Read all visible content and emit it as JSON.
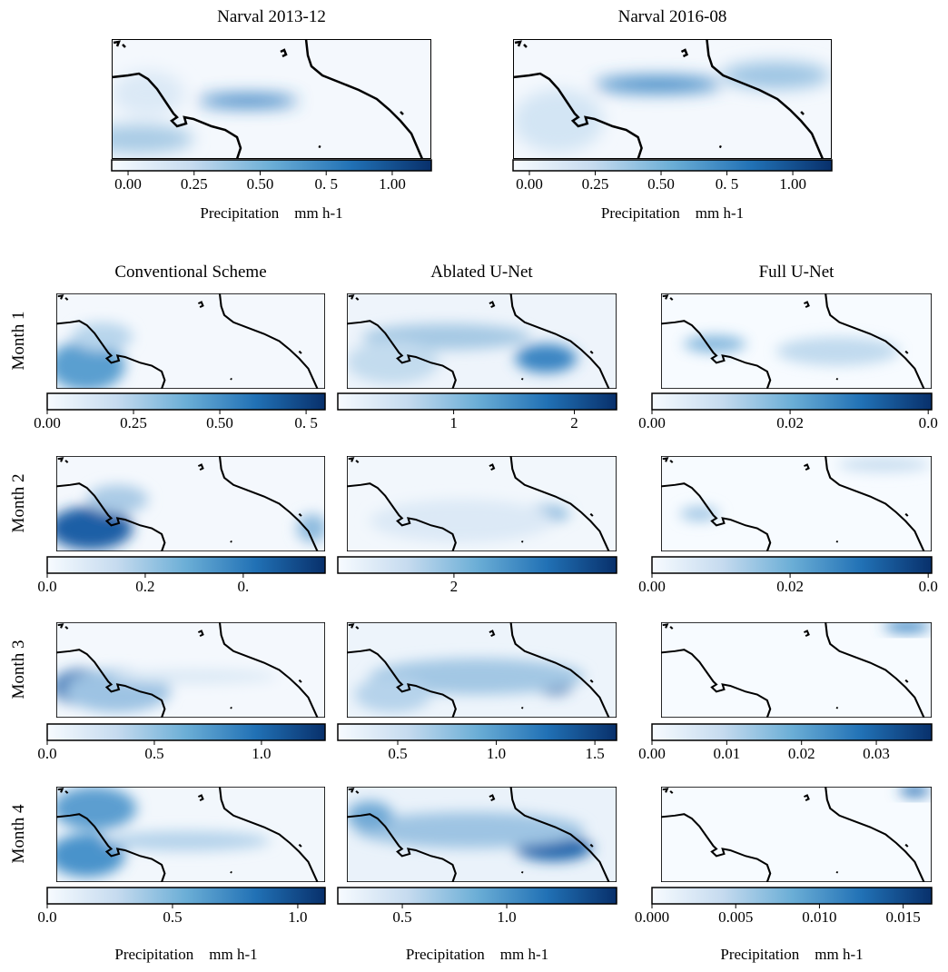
{
  "top_panels": [
    {
      "title": "Narval 2013-12",
      "colorbar": {
        "lim": [
          -0.062,
          1.148
        ],
        "ticks": [
          {
            "value": 0,
            "label": "0.00"
          },
          0.25,
          {
            "value": 0.5,
            "label": "0.50"
          },
          {
            "value": 0.75,
            "label": "0. 5"
          },
          {
            "value": 1,
            "label": "1.00"
          }
        ],
        "label": "Precipitation    mm h-1"
      }
    },
    {
      "title": "Narval 2016-08",
      "colorbar": {
        "lim": [
          -0.062,
          1.148
        ],
        "ticks": [
          {
            "value": 0,
            "label": "0.00"
          },
          0.25,
          {
            "value": 0.5,
            "label": "0.50"
          },
          {
            "value": 0.75,
            "label": "0. 5"
          },
          {
            "value": 1,
            "label": "1.00"
          }
        ],
        "label": "Precipitation    mm h-1"
      }
    }
  ],
  "column_titles": [
    "Conventional Scheme",
    "Ablated U-Net",
    "Full U-Net"
  ],
  "rows": [
    {
      "label": "Month 1",
      "colorbars": [
        {
          "lim": [
            0,
            0.805
          ],
          "ticks": [
            {
              "value": 0,
              "label": "0.00"
            },
            0.25,
            {
              "value": 0.5,
              "label": "0.50"
            },
            {
              "value": 0.75,
              "label": "0. 5"
            }
          ]
        },
        {
          "lim": [
            0.04,
            2.35
          ],
          "ticks": [
            1,
            2
          ]
        },
        {
          "lim": [
            0,
            0.0405
          ],
          "ticks": [
            {
              "value": 0,
              "label": "0.00"
            },
            0.02,
            {
              "value": 0.04,
              "label": "0.0"
            }
          ]
        }
      ]
    },
    {
      "label": "Month 2",
      "colorbars": [
        {
          "lim": [
            0,
            0.567
          ],
          "ticks": [
            {
              "value": 0,
              "label": "0.0"
            },
            0.2,
            {
              "value": 0.4,
              "label": "0."
            }
          ]
        },
        {
          "lim": [
            0,
            4.8
          ],
          "ticks": [
            2
          ]
        },
        {
          "lim": [
            0,
            0.0405
          ],
          "ticks": [
            {
              "value": 0,
              "label": "0.00"
            },
            0.02,
            {
              "value": 0.04,
              "label": "0.0"
            }
          ]
        }
      ]
    },
    {
      "label": "Month 3",
      "colorbars": [
        {
          "lim": [
            0,
            1.297
          ],
          "ticks": [
            {
              "value": 0,
              "label": "0.0"
            },
            0.5,
            {
              "value": 1,
              "label": "1.0"
            }
          ]
        },
        {
          "lim": [
            0.196,
            1.61
          ],
          "ticks": [
            0.5,
            {
              "value": 1,
              "label": "1.0"
            },
            1.5
          ]
        },
        {
          "lim": [
            0,
            0.0374
          ],
          "ticks": [
            {
              "value": 0,
              "label": "0.00"
            },
            0.01,
            0.02,
            0.03
          ]
        }
      ]
    },
    {
      "label": "Month 4",
      "colorbars": [
        {
          "lim": [
            0,
            1.109
          ],
          "ticks": [
            {
              "value": 0,
              "label": "0.0"
            },
            0.5,
            {
              "value": 1,
              "label": "1.0"
            }
          ]
        },
        {
          "lim": [
            0.191,
            1.526
          ],
          "ticks": [
            0.5,
            {
              "value": 1,
              "label": "1.0"
            }
          ]
        },
        {
          "lim": [
            0,
            0.0167
          ],
          "ticks": [
            {
              "value": 0,
              "label": "0.000"
            },
            0.005,
            {
              "value": 0.01,
              "label": "0.010"
            },
            0.015
          ]
        }
      ]
    }
  ],
  "bottom_labels": [
    "Precipitation    mm h-1",
    "Precipitation    mm h-1",
    "Precipitation    mm h-1"
  ]
}
